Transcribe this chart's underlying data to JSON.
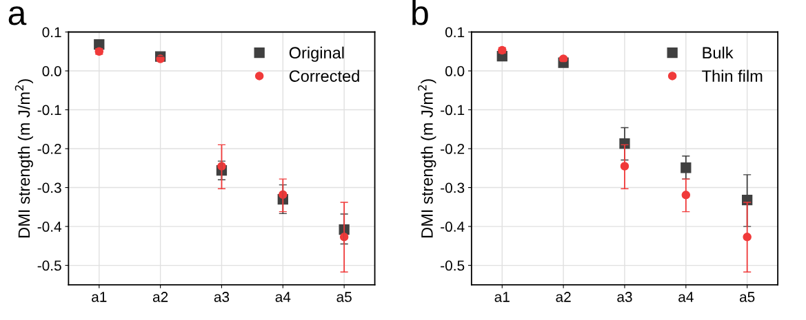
{
  "chart_data": [
    {
      "type": "scatter",
      "title": "a",
      "ylabel": "DMI strength (m J/m$^{2}$)",
      "categories": [
        "a1",
        "a2",
        "a3",
        "a4",
        "a5"
      ],
      "ylim": [
        -0.55,
        0.1
      ],
      "yticks": [
        {
          "value": 0.1,
          "label": "0.1"
        },
        {
          "value": 0.0,
          "label": "0.0"
        },
        {
          "value": -0.1,
          "label": "-0.1"
        },
        {
          "value": -0.2,
          "label": "-0.2"
        },
        {
          "value": -0.3,
          "label": "-0.3"
        },
        {
          "value": -0.4,
          "label": "-0.4"
        },
        {
          "value": -0.5,
          "label": "-0.5"
        }
      ],
      "grid": true,
      "legend": "top right",
      "series": [
        {
          "name": "Original",
          "color": "#404040",
          "marker": "square",
          "values": [
            0.068,
            0.037,
            -0.256,
            -0.33,
            -0.408
          ],
          "errors": [
            null,
            null,
            [
              -0.28,
              -0.232
            ],
            [
              -0.367,
              -0.293
            ],
            [
              -0.445,
              -0.368
            ]
          ]
        },
        {
          "name": "Corrected",
          "color": "#f03a3a",
          "marker": "circle",
          "values": [
            0.05,
            0.031,
            -0.245,
            -0.318,
            -0.427
          ],
          "errors": [
            [
              0.043,
              0.057
            ],
            [
              0.027,
              0.035
            ],
            [
              -0.303,
              -0.19
            ],
            [
              -0.362,
              -0.278
            ],
            [
              -0.517,
              -0.338
            ]
          ]
        }
      ]
    },
    {
      "type": "scatter",
      "title": "b",
      "ylabel": "DMI strength (m J/m$^{2}$)",
      "categories": [
        "a1",
        "a2",
        "a3",
        "a4",
        "a5"
      ],
      "ylim": [
        -0.55,
        0.1
      ],
      "yticks": [
        {
          "value": 0.1,
          "label": "0.1"
        },
        {
          "value": 0.0,
          "label": "0.0"
        },
        {
          "value": -0.1,
          "label": "-0.1"
        },
        {
          "value": -0.2,
          "label": "-0.2"
        },
        {
          "value": -0.3,
          "label": "-0.3"
        },
        {
          "value": -0.4,
          "label": "-0.4"
        },
        {
          "value": -0.5,
          "label": "-0.5"
        }
      ],
      "grid": true,
      "legend": "top right",
      "series": [
        {
          "name": "Bulk",
          "color": "#404040",
          "marker": "square",
          "values": [
            0.038,
            0.021,
            -0.187,
            -0.249,
            -0.332
          ],
          "errors": [
            null,
            null,
            [
              -0.229,
              -0.146
            ],
            [
              -0.278,
              -0.219
            ],
            [
              -0.4,
              -0.267
            ]
          ]
        },
        {
          "name": "Thin film",
          "color": "#f03a3a",
          "marker": "circle",
          "values": [
            0.053,
            0.031,
            -0.245,
            -0.319,
            -0.427
          ],
          "errors": [
            [
              0.046,
              0.06
            ],
            [
              0.027,
              0.035
            ],
            [
              -0.303,
              -0.19
            ],
            [
              -0.362,
              -0.278
            ],
            [
              -0.517,
              -0.338
            ]
          ]
        }
      ]
    }
  ]
}
